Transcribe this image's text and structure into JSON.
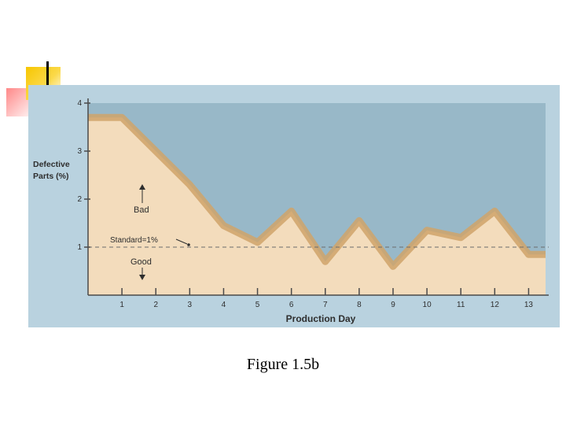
{
  "caption": "Figure 1.5b",
  "chart_data": {
    "type": "area",
    "title": "",
    "xlabel": "Production Day",
    "ylabel": "Defective Parts (%)",
    "x": [
      0.0,
      1.0,
      2.0,
      3.0,
      4.0,
      5.0,
      6.0,
      7.0,
      8.0,
      9.0,
      10.0,
      11.0,
      12.0,
      13.0,
      13.5
    ],
    "y": [
      3.7,
      3.7,
      3.0,
      2.3,
      1.45,
      1.1,
      1.75,
      0.7,
      1.55,
      0.6,
      1.35,
      1.2,
      1.75,
      0.85,
      0.85
    ],
    "xticks": [
      "1",
      "2",
      "3",
      "4",
      "5",
      "6",
      "7",
      "8",
      "9",
      "10",
      "11",
      "12",
      "13"
    ],
    "yticks": [
      "1",
      "2",
      "3",
      "4"
    ],
    "xlim": [
      0.0,
      13.5
    ],
    "ylim": [
      0,
      4
    ],
    "reference_line": {
      "value": 1,
      "label": "Standard=1%"
    },
    "annotations": {
      "above": "Bad",
      "below": "Good"
    },
    "colors": {
      "panel": "#b9d2df",
      "sky": "#98b8c8",
      "fill": "#f3dcbc",
      "ridge": "#cfa36a",
      "axis": "#4a4a4a",
      "text": "#2e2e2e"
    }
  }
}
